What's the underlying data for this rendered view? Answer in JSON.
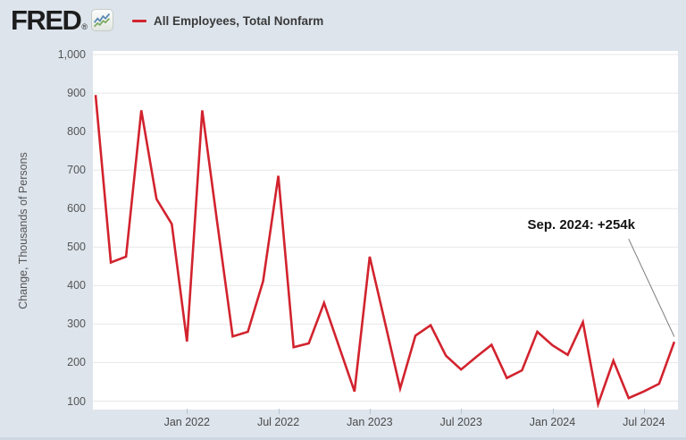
{
  "header": {
    "logo_text": "FRED",
    "registered_mark": "®",
    "logo_icon": {
      "blue_line_color": "#5a87b5",
      "green_line_color": "#79a95d"
    },
    "legend": {
      "series_label": "All Employees, Total Nonfarm",
      "swatch_color": "#d2232e"
    }
  },
  "chart_data": {
    "type": "line",
    "title": "",
    "xlabel": "",
    "ylabel": "Change, Thousands of Persons",
    "series_name": "All Employees, Total Nonfarm",
    "line_color": "#d2232e",
    "grid": "horizontal",
    "legend_position": "top-header",
    "ylim": [
      70,
      1010
    ],
    "x": [
      "Jul 2021",
      "Aug 2021",
      "Sep 2021",
      "Oct 2021",
      "Nov 2021",
      "Dec 2021",
      "Jan 2022",
      "Feb 2022",
      "Mar 2022",
      "Apr 2022",
      "May 2022",
      "Jun 2022",
      "Jul 2022",
      "Aug 2022",
      "Sep 2022",
      "Oct 2022",
      "Nov 2022",
      "Dec 2022",
      "Jan 2023",
      "Feb 2023",
      "Mar 2023",
      "Apr 2023",
      "May 2023",
      "Jun 2023",
      "Jul 2023",
      "Aug 2023",
      "Sep 2023",
      "Oct 2023",
      "Nov 2023",
      "Dec 2023",
      "Jan 2024",
      "Feb 2024",
      "Mar 2024",
      "Apr 2024",
      "May 2024",
      "Jun 2024",
      "Jul 2024",
      "Aug 2024",
      "Sep 2024"
    ],
    "values": [
      895,
      460,
      475,
      855,
      625,
      560,
      255,
      855,
      560,
      268,
      280,
      412,
      685,
      240,
      250,
      355,
      240,
      125,
      475,
      305,
      133,
      270,
      297,
      218,
      182,
      215,
      246,
      160,
      180,
      280,
      245,
      220,
      305,
      92,
      205,
      108,
      125,
      145,
      254
    ],
    "yticks": [
      {
        "label": "100",
        "value": 100
      },
      {
        "label": "200",
        "value": 200
      },
      {
        "label": "300",
        "value": 300
      },
      {
        "label": "400",
        "value": 400
      },
      {
        "label": "500",
        "value": 500
      },
      {
        "label": "600",
        "value": 600
      },
      {
        "label": "700",
        "value": 700
      },
      {
        "label": "800",
        "value": 800
      },
      {
        "label": "900",
        "value": 900
      },
      {
        "label": "1,000",
        "value": 1000
      }
    ],
    "xticks": [
      {
        "label": "Jan 2022",
        "index": 6
      },
      {
        "label": "Jul 2022",
        "index": 12
      },
      {
        "label": "Jan 2023",
        "index": 18
      },
      {
        "label": "Jul 2023",
        "index": 24
      },
      {
        "label": "Jan 2024",
        "index": 30
      },
      {
        "label": "Jul 2024",
        "index": 36
      }
    ],
    "annotation": {
      "label": "Sep. 2024: +254k",
      "pointer": {
        "from_index": 35,
        "from_value": 521,
        "to_index": 38,
        "to_value": 267
      }
    }
  }
}
